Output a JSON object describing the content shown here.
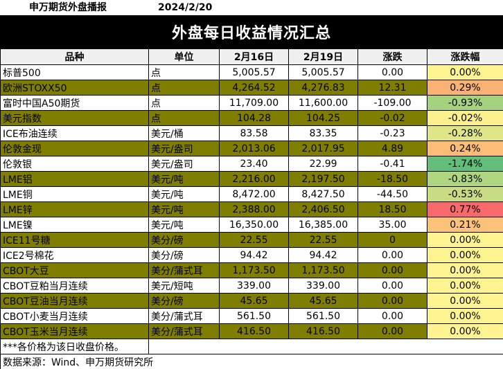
{
  "header": {
    "org": "申万期货外盘播报",
    "date": "2024/2/20"
  },
  "banner": {
    "title": "外盘每日收益情况汇总"
  },
  "table": {
    "headers": [
      "品种",
      "单位",
      "2月16日",
      "2月19日",
      "涨跌",
      "涨跌幅"
    ],
    "rows": [
      {
        "name": "标普500",
        "unit": "点",
        "d1": "5,005.57",
        "d2": "5,005.57",
        "chg": "0.00",
        "pct": "0.00%",
        "pct_color": "#fdf491",
        "dark": false
      },
      {
        "name": "欧洲STOXX50",
        "unit": "点",
        "d1": "4,264.52",
        "d2": "4,276.83",
        "chg": "12.31",
        "pct": "0.29%",
        "pct_color": "#f9b274",
        "dark": true
      },
      {
        "name": "富时中国A50期货",
        "unit": "点",
        "d1": "11,709.00",
        "d2": "11,600.00",
        "chg": "-109.00",
        "pct": "-0.93%",
        "pct_color": "#a5d27e",
        "dark": false
      },
      {
        "name": "美元指数",
        "unit": "点",
        "d1": "104.28",
        "d2": "104.25",
        "chg": "-0.02",
        "pct": "-0.02%",
        "pct_color": "#fcf08e",
        "dark": true
      },
      {
        "name": "ICE布油连续",
        "unit": "美元/桶",
        "d1": "83.58",
        "d2": "83.35",
        "chg": "-0.23",
        "pct": "-0.28%",
        "pct_color": "#dfe589",
        "dark": false
      },
      {
        "name": "伦敦金现",
        "unit": "美元/盎司",
        "d1": "2,013.06",
        "d2": "2,017.95",
        "chg": "4.89",
        "pct": "0.24%",
        "pct_color": "#fabc77",
        "dark": true
      },
      {
        "name": "伦敦银",
        "unit": "美元/盎司",
        "d1": "23.40",
        "d2": "22.99",
        "chg": "-0.41",
        "pct": "-1.74%",
        "pct_color": "#63be7b",
        "dark": false
      },
      {
        "name": "LME铝",
        "unit": "美元/吨",
        "d1": "2,216.00",
        "d2": "2,197.50",
        "chg": "-18.50",
        "pct": "-0.83%",
        "pct_color": "#b0d580",
        "dark": true
      },
      {
        "name": "LME铜",
        "unit": "美元/吨",
        "d1": "8,472.00",
        "d2": "8,427.50",
        "chg": "-44.50",
        "pct": "-0.53%",
        "pct_color": "#c8dc84",
        "dark": false
      },
      {
        "name": "LME锌",
        "unit": "美元/吨",
        "d1": "2,388.00",
        "d2": "2,406.50",
        "chg": "18.50",
        "pct": "0.77%",
        "pct_color": "#f8696b",
        "dark": true
      },
      {
        "name": "LME镍",
        "unit": "美元/吨",
        "d1": "16,350.00",
        "d2": "16,385.00",
        "chg": "35.00",
        "pct": "0.21%",
        "pct_color": "#fbc27a",
        "dark": false
      },
      {
        "name": "ICE11号糖",
        "unit": "美分/磅",
        "d1": "22.55",
        "d2": "22.55",
        "chg": "0",
        "pct": "0.00%",
        "pct_color": "#fdf491",
        "dark": true
      },
      {
        "name": "ICE2号棉花",
        "unit": "美分/磅",
        "d1": "94.42",
        "d2": "94.42",
        "chg": "0.00",
        "pct": "0.00%",
        "pct_color": "#fdf491",
        "dark": false
      },
      {
        "name": "CBOT大豆",
        "unit": "美分/蒲式耳",
        "d1": "1,173.50",
        "d2": "1,173.50",
        "chg": "0.00",
        "pct": "0.00%",
        "pct_color": "#fdf491",
        "dark": true
      },
      {
        "name": "CBOT豆粕当月连续",
        "unit": "美元/短吨",
        "d1": "339.00",
        "d2": "339.00",
        "chg": "0.00",
        "pct": "0.00%",
        "pct_color": "#fdf491",
        "dark": false
      },
      {
        "name": "CBOT豆油当月连续",
        "unit": "美分/磅",
        "d1": "45.65",
        "d2": "45.65",
        "chg": "0.00",
        "pct": "0.00%",
        "pct_color": "#fdf491",
        "dark": true
      },
      {
        "name": "CBOT小麦当月连续",
        "unit": "美分/蒲式耳",
        "d1": "561.50",
        "d2": "561.50",
        "chg": "0.00",
        "pct": "0.00%",
        "pct_color": "#fdf491",
        "dark": false
      },
      {
        "name": "CBOT玉米当月连续",
        "unit": "美分/蒲式耳",
        "d1": "416.50",
        "d2": "416.50",
        "chg": "0.00",
        "pct": "0.00%",
        "pct_color": "#fdf491",
        "dark": true
      }
    ]
  },
  "footer": {
    "note": "***各价格为该日收盘价格。",
    "source": "数据来源：Wind、申万期货研究所"
  },
  "colors": {
    "dark_row": "#807e00",
    "banner_bg": "#000000",
    "header_bg": "#f0f0f0"
  }
}
